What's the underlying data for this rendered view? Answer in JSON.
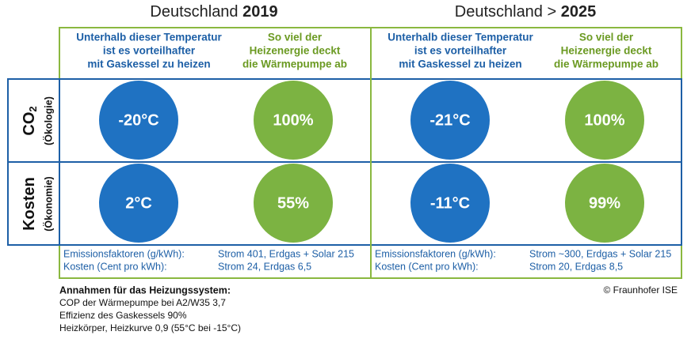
{
  "scenarios": [
    {
      "title_prefix": "Deutschland ",
      "title_year": "2019",
      "col_headers": [
        [
          "Unterhalb dieser Temperatur",
          "ist es vorteilhafter",
          "mit Gaskessel zu heizen"
        ],
        [
          "So viel der",
          "Heizenergie deckt",
          "die Wärmepumpe ab"
        ]
      ],
      "co2": [
        "-20°C",
        "100%"
      ],
      "kosten": [
        "2°C",
        "55%"
      ],
      "footer": {
        "labels": [
          "Emissionsfaktoren (g/kWh):",
          "Kosten (Cent pro kWh):"
        ],
        "values": [
          "Strom 401, Erdgas + Solar 215",
          "Strom 24, Erdgas 6,5"
        ]
      }
    },
    {
      "title_prefix": "Deutschland > ",
      "title_year": "2025",
      "col_headers": [
        [
          "Unterhalb dieser Temperatur",
          "ist es vorteilhafter",
          "mit Gaskessel zu heizen"
        ],
        [
          "So viel der",
          "Heizenergie deckt",
          "die Wärmepumpe ab"
        ]
      ],
      "co2": [
        "-21°C",
        "100%"
      ],
      "kosten": [
        "-11°C",
        "99%"
      ],
      "footer": {
        "labels": [
          "Emissionsfaktoren (g/kWh):",
          "Kosten (Cent pro kWh):"
        ],
        "values": [
          "Strom ~300, Erdgas + Solar 215",
          "Strom 20, Erdgas 8,5"
        ]
      }
    }
  ],
  "rows": [
    {
      "label": "CO",
      "subscript": "2",
      "sublabel": "(Ökologie)"
    },
    {
      "label": "Kosten",
      "sublabel": "(Ökonomie)"
    }
  ],
  "notes": {
    "title": "Annahmen für das Heizungssystem:",
    "lines": [
      "COP der Wärmepumpe bei A2/W35 3,7",
      "Effizienz des Gaskessels 90%",
      "Heizkörper, Heizkurve 0,9 (55°C bei -15°C)"
    ]
  },
  "copyright": "© Fraunhofer ISE"
}
